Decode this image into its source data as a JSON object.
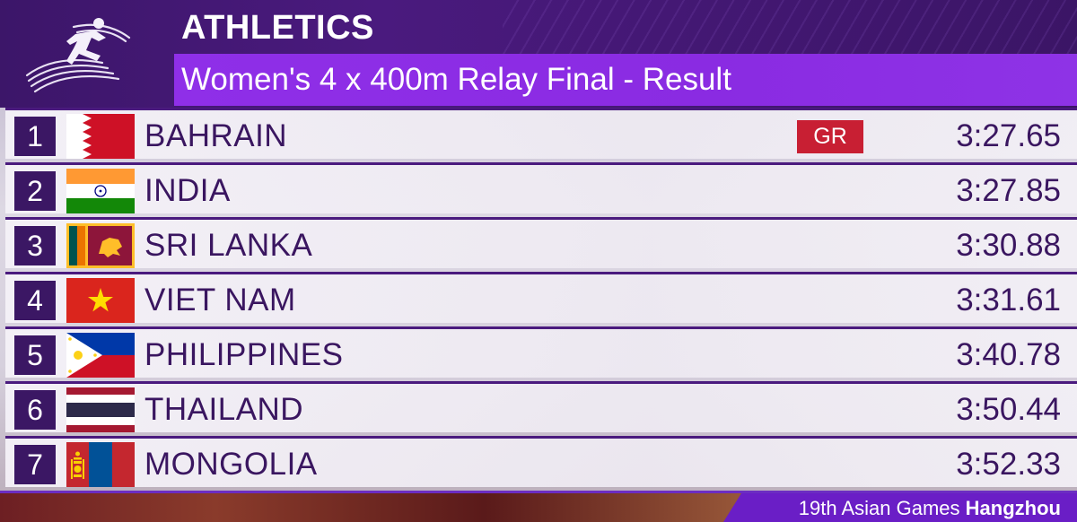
{
  "header": {
    "sport": "ATHLETICS",
    "event": "Women's 4 x 400m Relay Final - Result",
    "logo_icon": "runner-pictogram-icon"
  },
  "results": [
    {
      "rank": "1",
      "country": "BAHRAIN",
      "flag": "bahrain-flag-icon",
      "badge": "GR",
      "time": "3:27.65"
    },
    {
      "rank": "2",
      "country": "INDIA",
      "flag": "india-flag-icon",
      "badge": "",
      "time": "3:27.85"
    },
    {
      "rank": "3",
      "country": "SRI LANKA",
      "flag": "sri-lanka-flag-icon",
      "badge": "",
      "time": "3:30.88"
    },
    {
      "rank": "4",
      "country": "VIET NAM",
      "flag": "viet-nam-flag-icon",
      "badge": "",
      "time": "3:31.61"
    },
    {
      "rank": "5",
      "country": "PHILIPPINES",
      "flag": "philippines-flag-icon",
      "badge": "",
      "time": "3:40.78"
    },
    {
      "rank": "6",
      "country": "THAILAND",
      "flag": "thailand-flag-icon",
      "badge": "",
      "time": "3:50.44"
    },
    {
      "rank": "7",
      "country": "MONGOLIA",
      "flag": "mongolia-flag-icon",
      "badge": "",
      "time": "3:52.33"
    }
  ],
  "footer": {
    "games": "19th Asian Games",
    "city": "Hangzhou"
  },
  "colors": {
    "header_dark": "#3c1669",
    "event_bar": "#8a2be2",
    "rank_box": "#3b1764",
    "text": "#3a1660",
    "record_badge": "#c81f33"
  }
}
